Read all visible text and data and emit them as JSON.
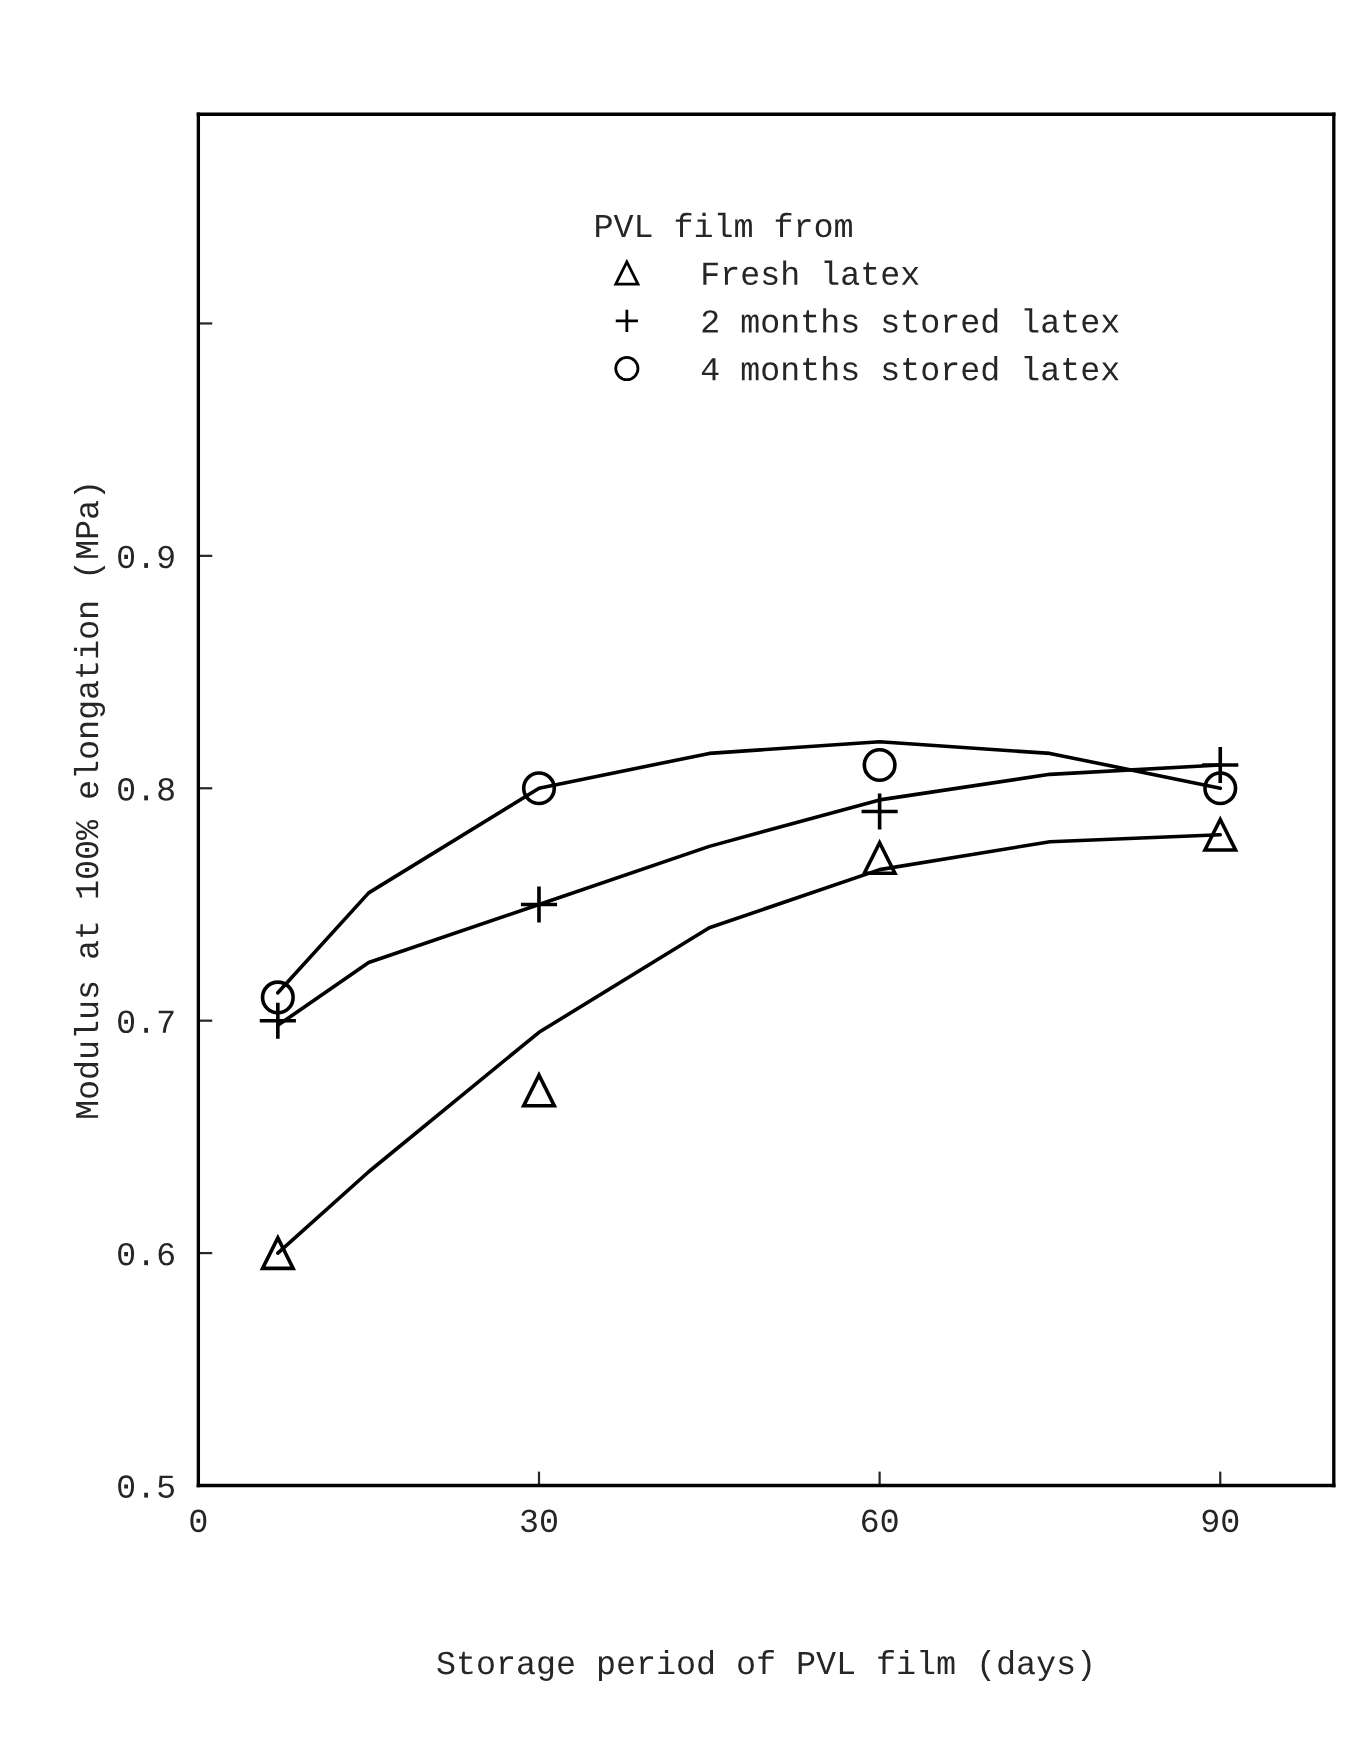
{
  "chart_data": {
    "type": "scatter",
    "xlabel": "Storage period of PVL film (days)",
    "ylabel": "Modulus at 100% elongation (MPa)",
    "legend_title": "PVL film from",
    "legend": "top",
    "grid": false,
    "xlim": [
      0,
      100
    ],
    "xticks": [
      0,
      30,
      60,
      90
    ],
    "ylim": [
      0.5,
      1.09
    ],
    "yticks": [
      0.5,
      0.6,
      0.7,
      0.8,
      0.9,
      {
        "value": 1.0,
        "label": null
      }
    ],
    "series": [
      {
        "name": "Fresh latex",
        "color": "#000000",
        "marker": "triangle",
        "x": [
          7,
          30,
          60,
          90
        ],
        "values": [
          0.6,
          0.67,
          0.77,
          0.78
        ]
      },
      {
        "name": "2 months stored latex",
        "color": "#000000",
        "marker": "cross",
        "x": [
          7,
          30,
          60,
          90
        ],
        "values": [
          0.7,
          0.75,
          0.79,
          0.81
        ]
      },
      {
        "name": "4 months stored latex",
        "color": "#000000",
        "marker": "circle",
        "x": [
          7,
          30,
          60,
          90
        ],
        "values": [
          0.71,
          0.8,
          0.81,
          0.8
        ]
      },
      {
        "type": "line",
        "color": "#000000",
        "marker": "none",
        "line_style": "solid",
        "x": [
          7,
          15,
          30,
          45,
          60,
          75,
          90
        ],
        "values": [
          0.6,
          0.635,
          0.695,
          0.74,
          0.765,
          0.777,
          0.78
        ]
      },
      {
        "type": "line",
        "color": "#000000",
        "marker": "none",
        "line_style": "solid",
        "x": [
          7,
          15,
          30,
          45,
          60,
          75,
          90
        ],
        "values": [
          0.698,
          0.725,
          0.75,
          0.775,
          0.795,
          0.806,
          0.81
        ]
      },
      {
        "type": "line",
        "color": "#000000",
        "marker": "none",
        "line_style": "solid",
        "x": [
          7,
          15,
          30,
          45,
          60,
          75,
          90
        ],
        "values": [
          0.712,
          0.755,
          0.8,
          0.815,
          0.82,
          0.815,
          0.8
        ]
      }
    ]
  }
}
